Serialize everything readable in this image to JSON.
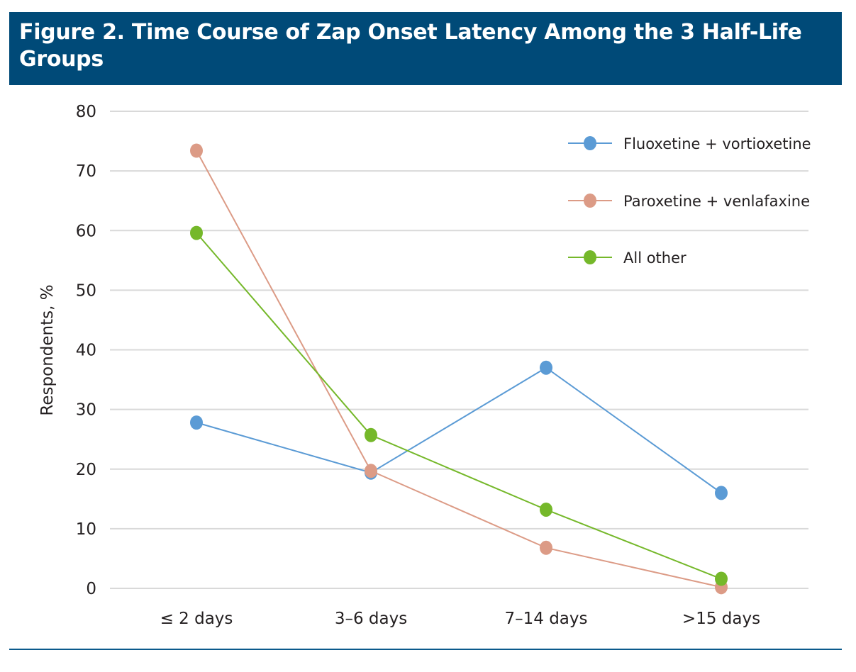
{
  "title": "Figure 2. Time Course of Zap Onset Latency Among the 3 Half-Life Groups",
  "chart_data": {
    "type": "line",
    "categories": [
      "≤ 2 days",
      "3–6 days",
      "7–14 days",
      ">15 days"
    ],
    "ylabel": "Respondents, %",
    "xlabel": "",
    "ylim": [
      0,
      80
    ],
    "yticks": [
      0,
      10,
      20,
      30,
      40,
      50,
      60,
      70,
      80
    ],
    "grid": true,
    "legend_position": "top-right",
    "series": [
      {
        "name": "Fluoxetine + vortioxetine",
        "color": "#5b9bd5",
        "values": [
          27.8,
          19.4,
          37.0,
          16.0
        ]
      },
      {
        "name": "Paroxetine + venlafaxine",
        "color": "#dc9b86",
        "values": [
          73.4,
          19.7,
          6.8,
          0.2
        ]
      },
      {
        "name": "All other",
        "color": "#75b82a",
        "values": [
          59.6,
          25.7,
          13.2,
          1.6
        ]
      }
    ]
  }
}
